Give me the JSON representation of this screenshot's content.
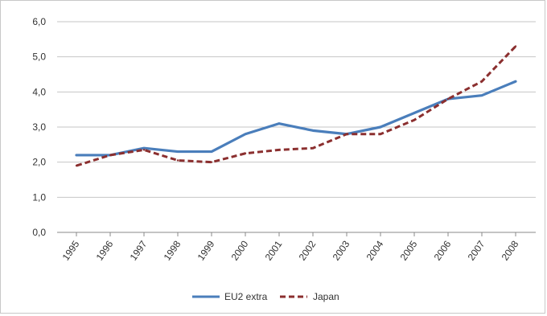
{
  "chart_data": {
    "type": "line",
    "categories": [
      "1995",
      "1996",
      "1997",
      "1998",
      "1999",
      "2000",
      "2001",
      "2002",
      "2003",
      "2004",
      "2005",
      "2006",
      "2007",
      "2008"
    ],
    "series": [
      {
        "name": "EU2 extra",
        "values": [
          2.2,
          2.2,
          2.4,
          2.3,
          2.3,
          2.8,
          3.1,
          2.9,
          2.8,
          3.0,
          3.4,
          3.8,
          3.9,
          4.3
        ],
        "color": "#4a7ebb",
        "dash": "solid"
      },
      {
        "name": "Japan",
        "values": [
          1.9,
          2.2,
          2.35,
          2.05,
          2.0,
          2.25,
          2.35,
          2.4,
          2.8,
          2.8,
          3.2,
          3.8,
          4.3,
          5.3
        ],
        "color": "#8b2f2f",
        "dash": "dashed"
      }
    ],
    "yticks": [
      "0,0",
      "1,0",
      "2,0",
      "3,0",
      "4,0",
      "5,0",
      "6,0"
    ],
    "ylim": [
      0,
      6
    ],
    "grid": true,
    "legend_position": "bottom"
  }
}
